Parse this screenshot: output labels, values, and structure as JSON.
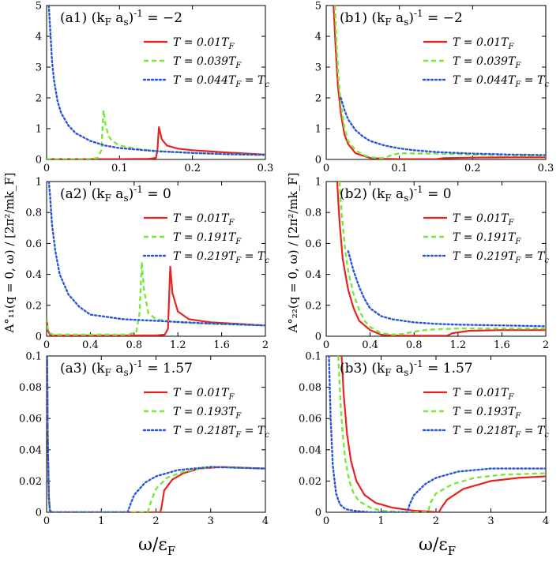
{
  "figure": {
    "x_label": "ω/ε",
    "x_label_sub": "F",
    "y_label_left": "A°₁₁(q = 0, ω) / [2π²/mk_F]",
    "y_label_right": "A°₂₂(q = 0, ω) / [2π²/mk_F]"
  },
  "colors": {
    "red": "#e8231f",
    "green": "#79e83a",
    "blue": "#2a55d9"
  },
  "chart_data": [
    {
      "id": "a1",
      "type": "line",
      "title": "(a1) (k_F a_s)^-1 = −2",
      "xlim": [
        0,
        0.3
      ],
      "ylim": [
        0,
        5
      ],
      "xticks": [
        0,
        0.1,
        0.2,
        0.3
      ],
      "xtick_labels": [
        "0",
        "0.1",
        "0.2",
        "0.3"
      ],
      "yticks": [
        0,
        1,
        2,
        3,
        4,
        5
      ],
      "ytick_labels": [
        "0",
        "1",
        "2",
        "3",
        "4",
        "5"
      ],
      "series": [
        {
          "name": "T = 0.01T_F",
          "color": "red",
          "style": "solid",
          "x": [
            0,
            0.05,
            0.1,
            0.14,
            0.15,
            0.152,
            0.154,
            0.158,
            0.165,
            0.18,
            0.2,
            0.25,
            0.3
          ],
          "y": [
            0.01,
            0.01,
            0.01,
            0.02,
            0.05,
            0.3,
            1.05,
            0.65,
            0.45,
            0.35,
            0.3,
            0.22,
            0.16
          ]
        },
        {
          "name": "T = 0.039T_F",
          "color": "green",
          "style": "dashed",
          "x": [
            0,
            0.03,
            0.06,
            0.07,
            0.075,
            0.078,
            0.081,
            0.085,
            0.09,
            0.1,
            0.13,
            0.16,
            0.2,
            0.25,
            0.3
          ],
          "y": [
            0.01,
            0.01,
            0.02,
            0.05,
            0.3,
            1.6,
            1.1,
            0.75,
            0.6,
            0.45,
            0.32,
            0.26,
            0.21,
            0.17,
            0.14
          ]
        },
        {
          "name": "T = 0.044T_F = T_c",
          "color": "blue",
          "style": "dotted",
          "x": [
            0.003,
            0.005,
            0.0075,
            0.01,
            0.015,
            0.02,
            0.03,
            0.04,
            0.06,
            0.08,
            0.1,
            0.15,
            0.2,
            0.25,
            0.3
          ],
          "y": [
            5,
            4.2,
            3.2,
            2.6,
            1.9,
            1.5,
            1.1,
            0.85,
            0.6,
            0.45,
            0.37,
            0.27,
            0.21,
            0.17,
            0.15
          ]
        }
      ]
    },
    {
      "id": "a2",
      "type": "line",
      "title": "(a2) (k_F a_s)^-1 = 0",
      "xlim": [
        0,
        2
      ],
      "ylim": [
        0,
        1
      ],
      "xticks": [
        0,
        0.4,
        0.8,
        1.2,
        1.6,
        2
      ],
      "xtick_labels": [
        "0",
        "0.4",
        "0.8",
        "1.2",
        "1.6",
        "2"
      ],
      "yticks": [
        0,
        0.2,
        0.4,
        0.6,
        0.8,
        1
      ],
      "ytick_labels": [
        "0",
        "0.2",
        "0.4",
        "0.6",
        "0.8",
        "1"
      ],
      "series": [
        {
          "name": "T = 0.01T_F",
          "color": "red",
          "style": "solid",
          "x": [
            0,
            0.01,
            0.03,
            0.06,
            0.2,
            0.6,
            1.0,
            1.08,
            1.11,
            1.13,
            1.15,
            1.2,
            1.3,
            1.5,
            1.75,
            2
          ],
          "y": [
            0.12,
            0.04,
            0.01,
            0.005,
            0.005,
            0.005,
            0.005,
            0.01,
            0.05,
            0.45,
            0.28,
            0.16,
            0.11,
            0.09,
            0.08,
            0.07
          ]
        },
        {
          "name": "T = 0.191T_F",
          "color": "green",
          "style": "dashed",
          "x": [
            0,
            0.01,
            0.03,
            0.06,
            0.2,
            0.5,
            0.75,
            0.82,
            0.85,
            0.87,
            0.89,
            0.93,
            1.0,
            1.2,
            1.5,
            2
          ],
          "y": [
            0.12,
            0.05,
            0.02,
            0.01,
            0.01,
            0.01,
            0.01,
            0.03,
            0.15,
            0.48,
            0.3,
            0.15,
            0.11,
            0.09,
            0.08,
            0.07
          ]
        },
        {
          "name": "T = 0.219T_F = T_c",
          "color": "blue",
          "style": "dotted",
          "x": [
            0.02,
            0.03,
            0.05,
            0.08,
            0.12,
            0.2,
            0.3,
            0.4,
            0.5,
            0.7,
            1.0,
            1.4,
            2
          ],
          "y": [
            1,
            0.92,
            0.72,
            0.55,
            0.4,
            0.27,
            0.19,
            0.14,
            0.13,
            0.11,
            0.1,
            0.085,
            0.07
          ]
        }
      ]
    },
    {
      "id": "a3",
      "type": "line",
      "title": "(a3) (k_F a_s)^-1 = 1.57",
      "xlim": [
        0,
        4
      ],
      "ylim": [
        0,
        0.1
      ],
      "xticks": [
        0,
        1,
        2,
        3,
        4
      ],
      "xtick_labels": [
        "0",
        "1",
        "2",
        "3",
        "4"
      ],
      "yticks": [
        0,
        0.02,
        0.04,
        0.06,
        0.08,
        0.1
      ],
      "ytick_labels": [
        "0",
        "0.02",
        "0.04",
        "0.06",
        "0.08",
        "0.1"
      ],
      "series": [
        {
          "name": "T = 0.01T_F",
          "color": "red",
          "style": "solid",
          "x": [
            0.01,
            0.02,
            0.04,
            0.06,
            0.1,
            1.0,
            2.08,
            2.1,
            2.15,
            2.3,
            2.5,
            2.8,
            3.2,
            4
          ],
          "y": [
            0.1,
            0.05,
            0.01,
            0.001,
            0,
            0,
            0,
            0.003,
            0.014,
            0.021,
            0.025,
            0.028,
            0.029,
            0.028
          ]
        },
        {
          "name": "T = 0.193T_F",
          "color": "green",
          "style": "dashed",
          "x": [
            0.01,
            0.02,
            0.04,
            0.06,
            0.1,
            1.0,
            1.85,
            1.9,
            2.0,
            2.2,
            2.5,
            3.0,
            4
          ],
          "y": [
            0.1,
            0.05,
            0.01,
            0.001,
            0,
            0,
            0,
            0.006,
            0.015,
            0.022,
            0.026,
            0.029,
            0.028
          ]
        },
        {
          "name": "T = 0.218T_F = T_c",
          "color": "blue",
          "style": "dotted",
          "x": [
            0.01,
            0.02,
            0.04,
            0.06,
            0.1,
            1.0,
            1.48,
            1.52,
            1.6,
            1.8,
            2.0,
            2.4,
            3.0,
            4
          ],
          "y": [
            0.1,
            0.05,
            0.01,
            0.001,
            0,
            0,
            0,
            0.004,
            0.011,
            0.019,
            0.023,
            0.027,
            0.029,
            0.028
          ]
        }
      ]
    },
    {
      "id": "b1",
      "type": "line",
      "title": "(b1) (k_F a_s)^-1 = −2",
      "xlim": [
        0,
        0.3
      ],
      "ylim": [
        0,
        5
      ],
      "xticks": [
        0,
        0.1,
        0.2,
        0.3
      ],
      "xtick_labels": [
        "0",
        "0.1",
        "0.2",
        "0.3"
      ],
      "yticks": [
        0,
        1,
        2,
        3,
        4,
        5
      ],
      "ytick_labels": [
        "0",
        "1",
        "2",
        "3",
        "4",
        "5"
      ],
      "series": [
        {
          "name": "T = 0.01T_F",
          "color": "red",
          "style": "solid",
          "x": [
            0.01,
            0.013,
            0.016,
            0.02,
            0.025,
            0.03,
            0.04,
            0.06,
            0.08,
            0.1,
            0.15,
            0.16,
            0.2,
            0.25,
            0.3
          ],
          "y": [
            5,
            3.6,
            2.4,
            1.5,
            0.8,
            0.5,
            0.2,
            0.05,
            0.02,
            0.01,
            0.01,
            0.04,
            0.06,
            0.07,
            0.07
          ]
        },
        {
          "name": "T = 0.039T_F",
          "color": "green",
          "style": "dashed",
          "x": [
            0.012,
            0.014,
            0.017,
            0.02,
            0.025,
            0.03,
            0.04,
            0.05,
            0.06,
            0.07,
            0.08,
            0.09,
            0.1,
            0.15,
            0.2,
            0.3
          ],
          "y": [
            5,
            3.8,
            2.6,
            1.8,
            1.0,
            0.6,
            0.3,
            0.15,
            0.08,
            0.04,
            0.05,
            0.15,
            0.2,
            0.19,
            0.16,
            0.12
          ]
        },
        {
          "name": "T = 0.044T_F = T_c",
          "color": "blue",
          "style": "dotted",
          "x": [
            0.02,
            0.025,
            0.03,
            0.04,
            0.05,
            0.06,
            0.08,
            0.1,
            0.12,
            0.15,
            0.2,
            0.25,
            0.3
          ],
          "y": [
            2.0,
            1.6,
            1.3,
            0.95,
            0.75,
            0.6,
            0.45,
            0.36,
            0.3,
            0.24,
            0.19,
            0.16,
            0.14
          ]
        }
      ]
    },
    {
      "id": "b2",
      "type": "line",
      "title": "(b2) (k_F a_s)^-1 = 0",
      "xlim": [
        0,
        2
      ],
      "ylim": [
        0,
        1
      ],
      "xticks": [
        0,
        0.4,
        0.8,
        1.2,
        1.6,
        2
      ],
      "xtick_labels": [
        "0",
        "0.4",
        "0.8",
        "1.2",
        "1.6",
        "2"
      ],
      "yticks": [
        0,
        0.2,
        0.4,
        0.6,
        0.8,
        1
      ],
      "ytick_labels": [
        "0",
        "0.2",
        "0.4",
        "0.6",
        "0.8",
        "1"
      ],
      "series": [
        {
          "name": "T = 0.01T_F",
          "color": "red",
          "style": "solid",
          "x": [
            0.1,
            0.12,
            0.15,
            0.2,
            0.25,
            0.3,
            0.4,
            0.5,
            0.6,
            0.8,
            1.1,
            1.15,
            1.3,
            1.6,
            2
          ],
          "y": [
            1,
            0.75,
            0.5,
            0.3,
            0.18,
            0.1,
            0.04,
            0.01,
            0.005,
            0.003,
            0.003,
            0.02,
            0.035,
            0.04,
            0.04
          ]
        },
        {
          "name": "T = 0.191T_F",
          "color": "green",
          "style": "dashed",
          "x": [
            0.12,
            0.14,
            0.17,
            0.2,
            0.25,
            0.3,
            0.35,
            0.4,
            0.5,
            0.6,
            0.7,
            0.8,
            0.9,
            1.0,
            1.2,
            1.6,
            2
          ],
          "y": [
            1,
            0.8,
            0.58,
            0.42,
            0.27,
            0.17,
            0.1,
            0.06,
            0.02,
            0.01,
            0.015,
            0.03,
            0.04,
            0.045,
            0.05,
            0.05,
            0.05
          ]
        },
        {
          "name": "T = 0.219T_F = T_c",
          "color": "blue",
          "style": "dotted",
          "x": [
            0.2,
            0.25,
            0.3,
            0.35,
            0.4,
            0.5,
            0.6,
            0.8,
            1.0,
            1.2,
            1.6,
            2
          ],
          "y": [
            0.55,
            0.42,
            0.32,
            0.24,
            0.18,
            0.13,
            0.11,
            0.09,
            0.08,
            0.075,
            0.07,
            0.065
          ]
        }
      ]
    },
    {
      "id": "b3",
      "type": "line",
      "title": "(b3) (k_F a_s)^-1 = 1.57",
      "xlim": [
        0,
        4
      ],
      "ylim": [
        0,
        0.1
      ],
      "xticks": [
        0,
        1,
        2,
        3,
        4
      ],
      "xtick_labels": [
        "0",
        "1",
        "2",
        "3",
        "4"
      ],
      "yticks": [
        0,
        0.02,
        0.04,
        0.06,
        0.08,
        0.1
      ],
      "ytick_labels": [
        "0",
        "0.02",
        "0.04",
        "0.06",
        "0.08",
        "0.1"
      ],
      "series": [
        {
          "name": "T = 0.01T_F",
          "color": "red",
          "style": "solid",
          "x": [
            0.28,
            0.32,
            0.38,
            0.45,
            0.55,
            0.7,
            0.9,
            1.2,
            1.6,
            2.05,
            2.1,
            2.2,
            2.5,
            3.0,
            3.5,
            4
          ],
          "y": [
            0.1,
            0.075,
            0.05,
            0.033,
            0.02,
            0.011,
            0.006,
            0.003,
            0.001,
            0,
            0.003,
            0.008,
            0.015,
            0.02,
            0.022,
            0.023
          ]
        },
        {
          "name": "T = 0.193T_F",
          "color": "green",
          "style": "dashed",
          "x": [
            0.22,
            0.26,
            0.3,
            0.35,
            0.42,
            0.5,
            0.6,
            0.8,
            1.0,
            1.4,
            1.85,
            1.9,
            2.0,
            2.3,
            2.7,
            3.2,
            4
          ],
          "y": [
            0.1,
            0.07,
            0.05,
            0.033,
            0.02,
            0.012,
            0.007,
            0.003,
            0.001,
            0,
            0,
            0.006,
            0.012,
            0.018,
            0.022,
            0.024,
            0.025
          ]
        },
        {
          "name": "T = 0.218T_F = T_c",
          "color": "blue",
          "style": "dotted",
          "x": [
            0.05,
            0.08,
            0.12,
            0.18,
            0.25,
            0.35,
            0.5,
            0.8,
            1.2,
            1.48,
            1.52,
            1.6,
            1.8,
            2.0,
            2.4,
            3.0,
            4
          ],
          "y": [
            0.1,
            0.06,
            0.03,
            0.012,
            0.005,
            0.002,
            0.001,
            0,
            0,
            0,
            0.005,
            0.011,
            0.018,
            0.022,
            0.026,
            0.028,
            0.028
          ]
        }
      ]
    }
  ]
}
